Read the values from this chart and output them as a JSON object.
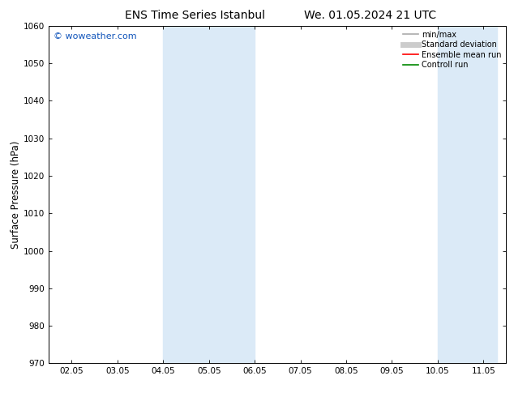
{
  "title_left": "ENS Time Series Istanbul",
  "title_right": "We. 01.05.2024 21 UTC",
  "ylabel": "Surface Pressure (hPa)",
  "ylim": [
    970,
    1060
  ],
  "yticks": [
    970,
    980,
    990,
    1000,
    1010,
    1020,
    1030,
    1040,
    1050,
    1060
  ],
  "x_labels": [
    "02.05",
    "03.05",
    "04.05",
    "05.05",
    "06.05",
    "07.05",
    "08.05",
    "09.05",
    "10.05",
    "11.05"
  ],
  "x_tick_positions": [
    0,
    1,
    2,
    3,
    4,
    5,
    6,
    7,
    8,
    9
  ],
  "shade_bands": [
    {
      "xmin": 2.0,
      "xmax": 3.5
    },
    {
      "xmin": 3.5,
      "xmax": 4.0
    },
    {
      "xmin": 8.0,
      "xmax": 8.5
    },
    {
      "xmin": 8.5,
      "xmax": 9.3
    }
  ],
  "shade_color": "#dbeaf7",
  "background_color": "#ffffff",
  "watermark": "© woweather.com",
  "watermark_color": "#1155bb",
  "legend_items": [
    {
      "label": "min/max",
      "color": "#aaaaaa",
      "lw": 1.2,
      "style": "solid"
    },
    {
      "label": "Standard deviation",
      "color": "#cccccc",
      "lw": 5,
      "style": "solid"
    },
    {
      "label": "Ensemble mean run",
      "color": "#ff0000",
      "lw": 1.2,
      "style": "solid"
    },
    {
      "label": "Controll run",
      "color": "#008800",
      "lw": 1.2,
      "style": "solid"
    }
  ],
  "title_fontsize": 10,
  "tick_fontsize": 7.5,
  "ylabel_fontsize": 8.5,
  "legend_fontsize": 7,
  "watermark_fontsize": 8
}
